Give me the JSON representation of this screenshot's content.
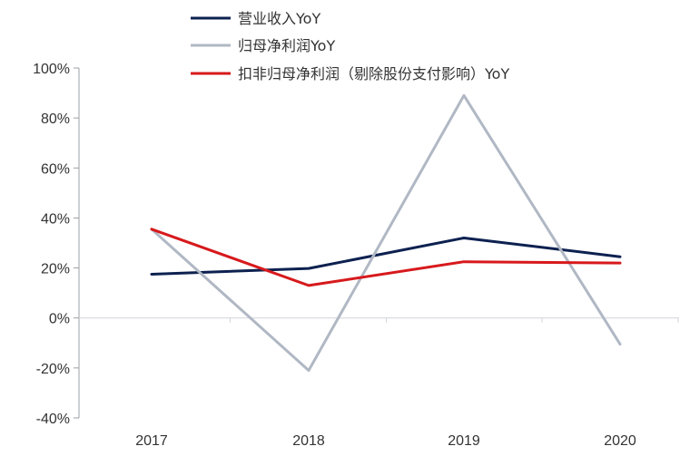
{
  "chart_data": {
    "type": "line",
    "categories": [
      "2017",
      "2018",
      "2019",
      "2020"
    ],
    "y_ticks": [
      "100%",
      "80%",
      "60%",
      "40%",
      "20%",
      "0%",
      "-20%",
      "-40%"
    ],
    "ylim": [
      -40,
      100
    ],
    "y_unit": "%",
    "grid": false,
    "legend_position": "top",
    "series": [
      {
        "name": "营业收入YoY",
        "color": "#0d2150",
        "values": [
          17.5,
          19.8,
          32.0,
          24.5
        ]
      },
      {
        "name": "归母净利润YoY",
        "color": "#b0b8c4",
        "values": [
          35.5,
          -21.0,
          89.0,
          -10.5
        ]
      },
      {
        "name": "扣非归母净利润（剔除股份支付影响）YoY",
        "color": "#d7191c",
        "values": [
          35.5,
          13.0,
          22.5,
          22.0
        ]
      }
    ]
  }
}
